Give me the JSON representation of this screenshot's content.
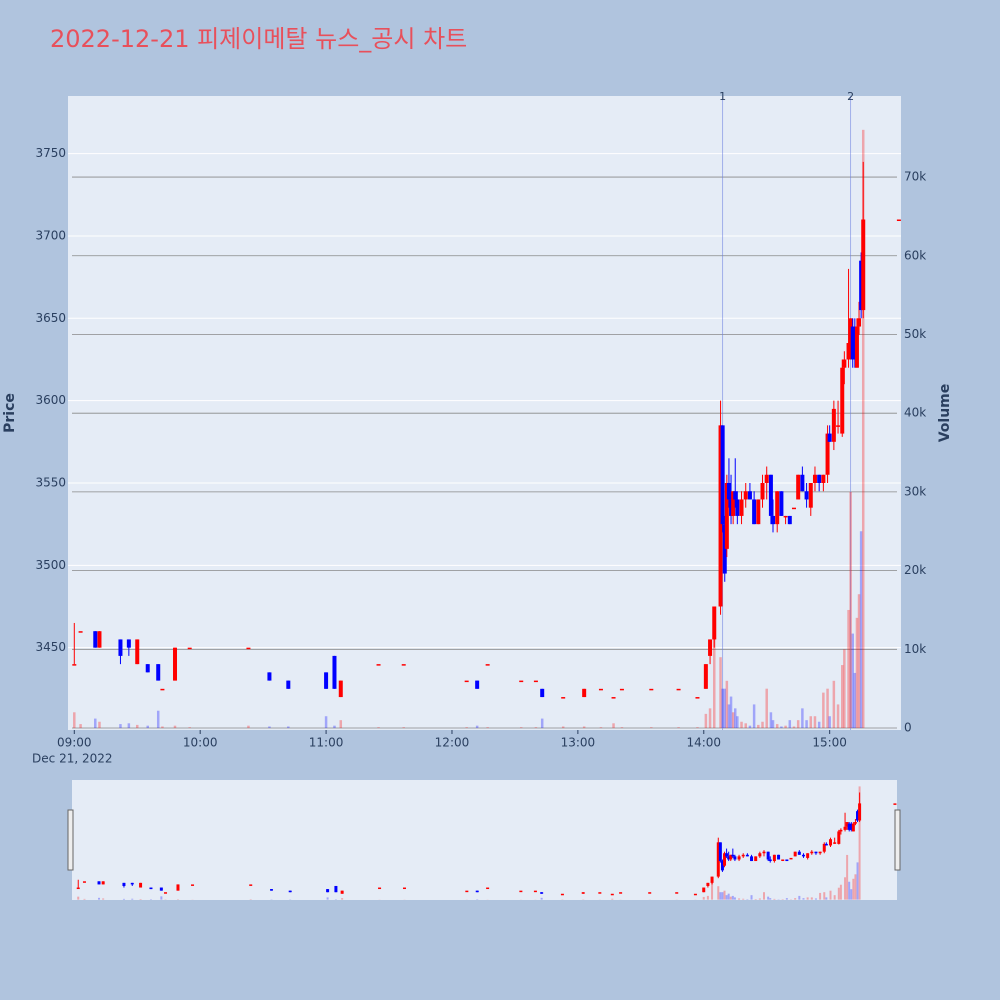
{
  "chart_data": {
    "type": "candlestick",
    "title": "2022-12-21 피제이메탈 뉴스_공시 차트",
    "ylabel": "Price",
    "y2label": "Volume",
    "x": [
      "09:00",
      "09:03",
      "09:10",
      "09:12",
      "09:22",
      "09:26",
      "09:30",
      "09:35",
      "09:40",
      "09:42",
      "09:48",
      "09:55",
      "10:23",
      "10:33",
      "10:42",
      "11:00",
      "11:04",
      "11:07",
      "11:25",
      "11:37",
      "12:07",
      "12:12",
      "12:17",
      "12:33",
      "12:40",
      "12:43",
      "12:53",
      "13:03",
      "13:11",
      "13:17",
      "13:21",
      "13:35",
      "13:48",
      "13:57",
      "14:01",
      "14:03",
      "14:05",
      "14:08",
      "14:09",
      "14:10",
      "14:11",
      "14:12",
      "14:13",
      "14:14",
      "14:15",
      "14:16",
      "14:18",
      "14:20",
      "14:22",
      "14:24",
      "14:26",
      "14:28",
      "14:30",
      "14:32",
      "14:33",
      "14:35",
      "14:37",
      "14:39",
      "14:41",
      "14:43",
      "14:45",
      "14:47",
      "14:49",
      "14:51",
      "14:53",
      "14:55",
      "14:57",
      "14:59",
      "15:00",
      "15:02",
      "15:04",
      "15:06",
      "15:07",
      "15:09",
      "15:10",
      "15:11",
      "15:12",
      "15:13",
      "15:14",
      "15:15",
      "15:16",
      "15:33"
    ],
    "open": [
      3440,
      3460,
      3460,
      3450,
      3455,
      3455,
      3440,
      3440,
      3440,
      3425,
      3430,
      3450,
      3450,
      3435,
      3430,
      3435,
      3445,
      3420,
      3440,
      3440,
      3430,
      3430,
      3440,
      3430,
      3430,
      3425,
      3420,
      3420,
      3425,
      3420,
      3425,
      3425,
      3425,
      3420,
      3425,
      3445,
      3455,
      3475,
      3585,
      3525,
      3510,
      3550,
      3540,
      3530,
      3545,
      3540,
      3530,
      3540,
      3545,
      3540,
      3525,
      3540,
      3550,
      3555,
      3530,
      3525,
      3545,
      3530,
      3530,
      3535,
      3540,
      3555,
      3545,
      3535,
      3550,
      3555,
      3550,
      3555,
      3580,
      3575,
      3585,
      3580,
      3620,
      3625,
      3635,
      3645,
      3645,
      3620,
      3645,
      3685,
      3655,
      3710
    ],
    "high": [
      3465,
      3460,
      3460,
      3460,
      3455,
      3455,
      3455,
      3440,
      3440,
      3425,
      3450,
      3450,
      3450,
      3435,
      3430,
      3435,
      3445,
      3430,
      3440,
      3440,
      3430,
      3430,
      3440,
      3430,
      3430,
      3425,
      3420,
      3425,
      3425,
      3420,
      3425,
      3425,
      3425,
      3420,
      3440,
      3455,
      3475,
      3600,
      3585,
      3530,
      3555,
      3565,
      3555,
      3545,
      3565,
      3545,
      3545,
      3550,
      3550,
      3545,
      3540,
      3555,
      3560,
      3555,
      3540,
      3545,
      3545,
      3530,
      3530,
      3535,
      3555,
      3560,
      3550,
      3550,
      3560,
      3555,
      3555,
      3585,
      3585,
      3600,
      3600,
      3625,
      3630,
      3680,
      3650,
      3650,
      3650,
      3650,
      3660,
      3690,
      3745,
      3710
    ],
    "low": [
      3440,
      3460,
      3450,
      3450,
      3440,
      3445,
      3440,
      3435,
      3430,
      3425,
      3430,
      3450,
      3450,
      3430,
      3425,
      3425,
      3425,
      3420,
      3440,
      3440,
      3430,
      3425,
      3440,
      3430,
      3430,
      3420,
      3420,
      3420,
      3425,
      3420,
      3425,
      3425,
      3425,
      3420,
      3425,
      3440,
      3450,
      3470,
      3520,
      3490,
      3505,
      3535,
      3525,
      3525,
      3535,
      3525,
      3525,
      3535,
      3540,
      3525,
      3525,
      3535,
      3540,
      3525,
      3520,
      3520,
      3530,
      3525,
      3525,
      3535,
      3540,
      3545,
      3535,
      3530,
      3545,
      3545,
      3545,
      3550,
      3575,
      3570,
      3580,
      3578,
      3610,
      3620,
      3625,
      3620,
      3620,
      3620,
      3640,
      3650,
      3650,
      3710
    ],
    "close": [
      3440,
      3460,
      3450,
      3460,
      3445,
      3450,
      3455,
      3435,
      3430,
      3425,
      3450,
      3450,
      3450,
      3430,
      3425,
      3425,
      3425,
      3430,
      3440,
      3440,
      3430,
      3425,
      3440,
      3430,
      3430,
      3420,
      3420,
      3425,
      3425,
      3420,
      3425,
      3425,
      3425,
      3420,
      3440,
      3455,
      3475,
      3585,
      3525,
      3495,
      3550,
      3540,
      3530,
      3545,
      3540,
      3530,
      3540,
      3545,
      3540,
      3525,
      3540,
      3550,
      3555,
      3530,
      3525,
      3545,
      3530,
      3530,
      3525,
      3535,
      3555,
      3545,
      3540,
      3550,
      3555,
      3550,
      3555,
      3580,
      3575,
      3595,
      3585,
      3620,
      3625,
      3635,
      3650,
      3625,
      3625,
      3645,
      3650,
      3655,
      3710,
      3710
    ],
    "volume": [
      2000,
      500,
      1200,
      800,
      500,
      600,
      400,
      300,
      2200,
      200,
      300,
      100,
      300,
      200,
      200,
      1500,
      300,
      1000,
      100,
      100,
      100,
      300,
      100,
      100,
      100,
      1200,
      200,
      200,
      100,
      600,
      100,
      100,
      100,
      100,
      1800,
      2500,
      12000,
      9000,
      5000,
      5000,
      6000,
      3000,
      4000,
      2000,
      2500,
      1500,
      800,
      600,
      300,
      3000,
      400,
      800,
      5000,
      2000,
      1000,
      500,
      200,
      300,
      1000,
      200,
      1000,
      2500,
      1000,
      1500,
      1500,
      800,
      4500,
      5000,
      1500,
      6000,
      3000,
      8000,
      10000,
      15000,
      30000,
      12000,
      7000,
      14000,
      17000,
      25000,
      76000,
      0
    ],
    "increasing_color": "#ff0000",
    "decreasing_color": "#0000ff",
    "xlim": [
      "08:57",
      "15:34"
    ],
    "xticks": [
      "09:00",
      "10:00",
      "11:00",
      "12:00",
      "13:00",
      "14:00",
      "15:00"
    ],
    "x_date_label": "Dec 21, 2022",
    "ylim": [
      3400,
      3785
    ],
    "yticks": [
      3450,
      3500,
      3550,
      3600,
      3650,
      3700,
      3750
    ],
    "y2lim": [
      -250,
      80300
    ],
    "y2ticks": [
      0,
      {
        "value": 10000,
        "label": "10k"
      },
      {
        "value": 20000,
        "label": "20k"
      },
      {
        "value": 30000,
        "label": "30k"
      },
      {
        "value": 40000,
        "label": "40k"
      },
      {
        "value": 50000,
        "label": "50k"
      },
      {
        "value": 60000,
        "label": "60k"
      },
      {
        "value": 70000,
        "label": "70k"
      }
    ],
    "annotations": [
      {
        "x": "14:09",
        "text": "1"
      },
      {
        "x": "15:10",
        "text": "2"
      }
    ],
    "grid": true,
    "range_slider": true
  }
}
